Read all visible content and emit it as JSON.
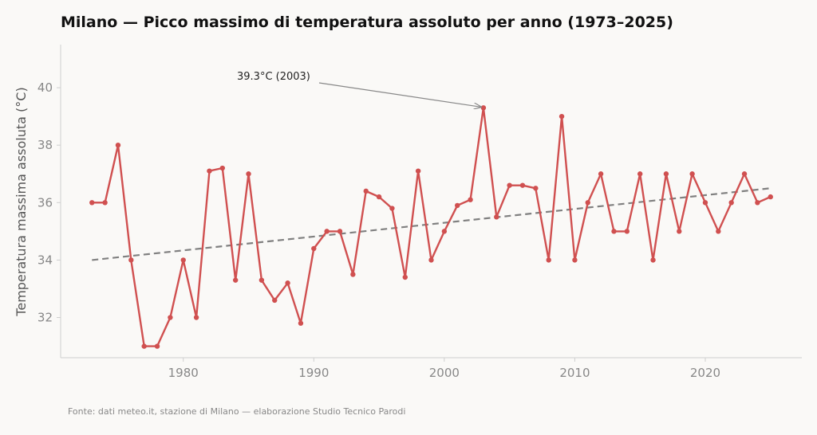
{
  "chart_data": {
    "type": "line",
    "title": "Milano — Picco massimo di temperatura assoluto per anno (1973–2025)",
    "ylabel": "Temperatura massima assoluta (°C)",
    "xlabel": "",
    "x_ticks": [
      1980,
      1990,
      2000,
      2010,
      2020
    ],
    "y_ticks": [
      32,
      34,
      36,
      38,
      40
    ],
    "xlim": [
      1970.6,
      2027.4
    ],
    "ylim": [
      30.6,
      41.5
    ],
    "grid": false,
    "series": [
      {
        "x": [
          1973,
          1974,
          1975,
          1976,
          1977,
          1978,
          1979,
          1980,
          1981,
          1982,
          1983,
          1984,
          1985,
          1986,
          1987,
          1988,
          1989,
          1990,
          1991,
          1992,
          1993,
          1994,
          1995,
          1996,
          1997,
          1998,
          1999,
          2000,
          2001,
          2002,
          2003,
          2004,
          2005,
          2006,
          2007,
          2008,
          2009,
          2010,
          2011,
          2012,
          2013,
          2014,
          2015,
          2016,
          2017,
          2018,
          2019,
          2020,
          2021,
          2022,
          2023,
          2024,
          2025
        ],
        "values": [
          36.0,
          36.0,
          38.0,
          34.0,
          31.0,
          31.0,
          32.0,
          34.0,
          32.0,
          37.1,
          37.2,
          33.3,
          37.0,
          33.3,
          32.6,
          33.2,
          31.8,
          34.4,
          35.0,
          35.0,
          33.5,
          36.4,
          36.2,
          35.8,
          33.4,
          37.1,
          34.0,
          35.0,
          35.9,
          36.1,
          39.3,
          35.5,
          36.6,
          36.6,
          36.5,
          34.0,
          39.0,
          34.0,
          36.0,
          37.0,
          35.0,
          35.0,
          37.0,
          34.0,
          37.0,
          35.0,
          37.0,
          36.0,
          35.0,
          36.0,
          37.0,
          36.0,
          36.2
        ],
        "color": "#d05050"
      }
    ],
    "trend": {
      "x": [
        1973,
        2025
      ],
      "values": [
        34.0,
        36.5
      ],
      "color": "#808080",
      "style": "dashed"
    },
    "annotations": [
      {
        "text": "39.3°C (2003)",
        "x": 2003,
        "y": 39.3
      }
    ]
  },
  "source_note": "Fonte: dati meteo.it, stazione di Milano — elaborazione Studio Tecnico Parodi"
}
